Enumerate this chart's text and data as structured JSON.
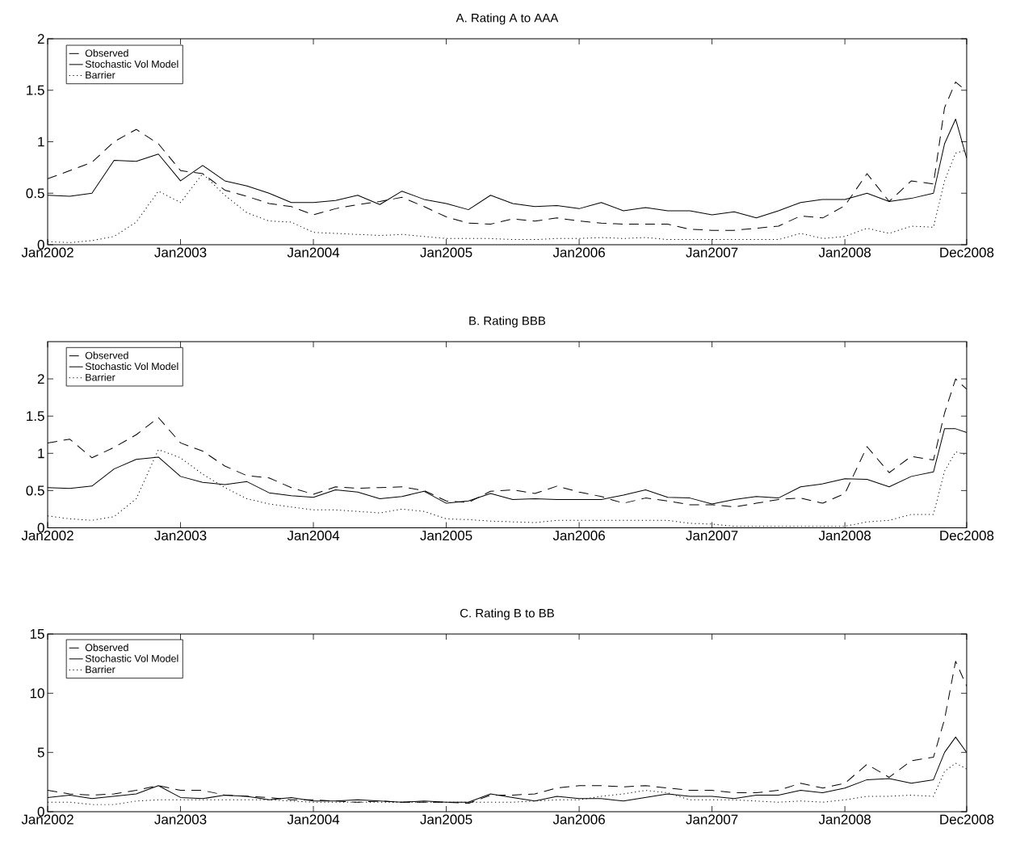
{
  "chart_data": [
    {
      "type": "line",
      "title": "A. Rating A to AAA",
      "x": [
        "2002-01",
        "2002-03",
        "2002-05",
        "2002-07",
        "2002-09",
        "2002-11",
        "2003-01",
        "2003-03",
        "2003-05",
        "2003-07",
        "2003-09",
        "2003-11",
        "2004-01",
        "2004-03",
        "2004-05",
        "2004-07",
        "2004-09",
        "2004-11",
        "2005-01",
        "2005-03",
        "2005-05",
        "2005-07",
        "2005-09",
        "2005-11",
        "2006-01",
        "2006-03",
        "2006-05",
        "2006-07",
        "2006-09",
        "2006-11",
        "2007-01",
        "2007-03",
        "2007-05",
        "2007-07",
        "2007-09",
        "2007-11",
        "2008-01",
        "2008-03",
        "2008-05",
        "2008-07",
        "2008-09",
        "2008-10",
        "2008-11",
        "2008-12"
      ],
      "series": [
        {
          "name": "Observed",
          "color": "#000000",
          "line_style": "dashed",
          "values": [
            0.64,
            0.72,
            0.8,
            1.0,
            1.12,
            0.98,
            0.72,
            0.69,
            0.53,
            0.47,
            0.4,
            0.37,
            0.29,
            0.35,
            0.39,
            0.42,
            0.46,
            0.37,
            0.27,
            0.21,
            0.2,
            0.25,
            0.23,
            0.26,
            0.23,
            0.21,
            0.2,
            0.2,
            0.2,
            0.15,
            0.14,
            0.14,
            0.16,
            0.18,
            0.28,
            0.26,
            0.38,
            0.69,
            0.42,
            0.62,
            0.59,
            1.33,
            1.58,
            1.49
          ]
        },
        {
          "name": "Stochastic Vol Model",
          "color": "#000000",
          "line_style": "solid",
          "values": [
            0.48,
            0.47,
            0.5,
            0.82,
            0.81,
            0.88,
            0.62,
            0.77,
            0.62,
            0.57,
            0.5,
            0.41,
            0.41,
            0.43,
            0.48,
            0.39,
            0.52,
            0.44,
            0.4,
            0.34,
            0.48,
            0.4,
            0.37,
            0.38,
            0.35,
            0.41,
            0.33,
            0.36,
            0.33,
            0.33,
            0.29,
            0.32,
            0.26,
            0.33,
            0.41,
            0.44,
            0.44,
            0.5,
            0.42,
            0.45,
            0.5,
            0.98,
            1.22,
            0.84
          ]
        },
        {
          "name": "Barrier",
          "color": "#000000",
          "line_style": "dotted",
          "values": [
            0.03,
            0.02,
            0.04,
            0.08,
            0.22,
            0.52,
            0.41,
            0.69,
            0.48,
            0.31,
            0.23,
            0.22,
            0.12,
            0.11,
            0.1,
            0.09,
            0.1,
            0.08,
            0.06,
            0.06,
            0.06,
            0.05,
            0.05,
            0.06,
            0.06,
            0.07,
            0.06,
            0.07,
            0.05,
            0.05,
            0.05,
            0.05,
            0.05,
            0.05,
            0.11,
            0.06,
            0.08,
            0.16,
            0.11,
            0.18,
            0.17,
            0.62,
            0.89,
            0.92
          ]
        }
      ],
      "xlim": [
        "2002-01",
        "2008-12"
      ],
      "ylim": [
        0,
        2
      ],
      "xticks": [
        {
          "value": "2002-01",
          "label": "Jan2002"
        },
        {
          "value": "2003-01",
          "label": "Jan2003"
        },
        {
          "value": "2004-01",
          "label": "Jan2004"
        },
        {
          "value": "2005-01",
          "label": "Jan2005"
        },
        {
          "value": "2006-01",
          "label": "Jan2006"
        },
        {
          "value": "2007-01",
          "label": "Jan2007"
        },
        {
          "value": "2008-01",
          "label": "Jan2008"
        },
        {
          "value": "2008-12",
          "label": "Dec2008"
        }
      ],
      "yticks": [
        0,
        0.5,
        1,
        1.5,
        2
      ],
      "legend": "top left"
    },
    {
      "type": "line",
      "title": "B. Rating BBB",
      "x": [
        "2002-01",
        "2002-03",
        "2002-05",
        "2002-07",
        "2002-09",
        "2002-11",
        "2003-01",
        "2003-03",
        "2003-05",
        "2003-07",
        "2003-09",
        "2003-11",
        "2004-01",
        "2004-03",
        "2004-05",
        "2004-07",
        "2004-09",
        "2004-11",
        "2005-01",
        "2005-03",
        "2005-05",
        "2005-07",
        "2005-09",
        "2005-11",
        "2006-01",
        "2006-03",
        "2006-05",
        "2006-07",
        "2006-09",
        "2006-11",
        "2007-01",
        "2007-03",
        "2007-05",
        "2007-07",
        "2007-09",
        "2007-11",
        "2008-01",
        "2008-03",
        "2008-05",
        "2008-07",
        "2008-09",
        "2008-10",
        "2008-11",
        "2008-12"
      ],
      "series": [
        {
          "name": "Observed",
          "color": "#000000",
          "line_style": "dashed",
          "values": [
            1.14,
            1.19,
            0.94,
            1.08,
            1.25,
            1.48,
            1.14,
            1.03,
            0.83,
            0.7,
            0.67,
            0.54,
            0.45,
            0.55,
            0.53,
            0.54,
            0.55,
            0.5,
            0.36,
            0.34,
            0.49,
            0.51,
            0.46,
            0.56,
            0.48,
            0.42,
            0.33,
            0.4,
            0.36,
            0.31,
            0.31,
            0.28,
            0.33,
            0.38,
            0.4,
            0.33,
            0.46,
            1.09,
            0.74,
            0.96,
            0.91,
            1.54,
            2.0,
            1.86
          ]
        },
        {
          "name": "Stochastic Vol Model",
          "color": "#000000",
          "line_style": "solid",
          "values": [
            0.54,
            0.53,
            0.56,
            0.79,
            0.92,
            0.95,
            0.69,
            0.61,
            0.58,
            0.62,
            0.47,
            0.43,
            0.41,
            0.51,
            0.48,
            0.39,
            0.42,
            0.49,
            0.33,
            0.36,
            0.46,
            0.38,
            0.39,
            0.38,
            0.38,
            0.38,
            0.44,
            0.51,
            0.41,
            0.4,
            0.32,
            0.38,
            0.42,
            0.4,
            0.55,
            0.59,
            0.66,
            0.65,
            0.55,
            0.69,
            0.75,
            1.33,
            1.33,
            1.28
          ]
        },
        {
          "name": "Barrier",
          "color": "#000000",
          "line_style": "dotted",
          "values": [
            0.16,
            0.12,
            0.1,
            0.15,
            0.39,
            1.05,
            0.94,
            0.72,
            0.54,
            0.39,
            0.32,
            0.28,
            0.24,
            0.24,
            0.22,
            0.2,
            0.25,
            0.22,
            0.12,
            0.11,
            0.09,
            0.08,
            0.07,
            0.1,
            0.1,
            0.1,
            0.1,
            0.1,
            0.1,
            0.06,
            0.05,
            0.02,
            0.02,
            0.02,
            0.02,
            0.02,
            0.02,
            0.08,
            0.1,
            0.18,
            0.18,
            0.76,
            1.02,
            0.98
          ]
        }
      ],
      "xlim": [
        "2002-01",
        "2008-12"
      ],
      "ylim": [
        0,
        2.5
      ],
      "xticks": [
        {
          "value": "2002-01",
          "label": "Jan2002"
        },
        {
          "value": "2003-01",
          "label": "Jan2003"
        },
        {
          "value": "2004-01",
          "label": "Jan2004"
        },
        {
          "value": "2005-01",
          "label": "Jan2005"
        },
        {
          "value": "2006-01",
          "label": "Jan2006"
        },
        {
          "value": "2007-01",
          "label": "Jan2007"
        },
        {
          "value": "2008-01",
          "label": "Jan2008"
        },
        {
          "value": "2008-12",
          "label": "Dec2008"
        }
      ],
      "yticks": [
        0,
        0.5,
        1,
        1.5,
        2
      ],
      "legend": "top left"
    },
    {
      "type": "line",
      "title": "C. Rating B to BB",
      "x": [
        "2002-01",
        "2002-03",
        "2002-05",
        "2002-07",
        "2002-09",
        "2002-11",
        "2003-01",
        "2003-03",
        "2003-05",
        "2003-07",
        "2003-09",
        "2003-11",
        "2004-01",
        "2004-03",
        "2004-05",
        "2004-07",
        "2004-09",
        "2004-11",
        "2005-01",
        "2005-03",
        "2005-05",
        "2005-07",
        "2005-09",
        "2005-11",
        "2006-01",
        "2006-03",
        "2006-05",
        "2006-07",
        "2006-09",
        "2006-11",
        "2007-01",
        "2007-03",
        "2007-05",
        "2007-07",
        "2007-09",
        "2007-11",
        "2008-01",
        "2008-03",
        "2008-05",
        "2008-07",
        "2008-09",
        "2008-10",
        "2008-11",
        "2008-12"
      ],
      "series": [
        {
          "name": "Observed",
          "color": "#000000",
          "line_style": "dashed",
          "values": [
            1.8,
            1.5,
            1.4,
            1.5,
            1.8,
            2.2,
            1.8,
            1.8,
            1.4,
            1.3,
            1.2,
            1.0,
            1.0,
            0.9,
            0.8,
            0.9,
            0.8,
            0.8,
            0.8,
            0.7,
            1.4,
            1.4,
            1.5,
            2.0,
            2.2,
            2.2,
            2.1,
            2.2,
            2.0,
            1.8,
            1.8,
            1.6,
            1.6,
            1.8,
            2.4,
            2.0,
            2.4,
            4.0,
            2.9,
            4.3,
            4.6,
            7.8,
            12.7,
            10.6
          ]
        },
        {
          "name": "Stochastic Vol Model",
          "color": "#000000",
          "line_style": "solid",
          "values": [
            1.2,
            1.4,
            1.1,
            1.3,
            1.5,
            2.2,
            1.2,
            1.1,
            1.4,
            1.3,
            1.0,
            1.2,
            0.9,
            0.9,
            1.0,
            0.9,
            0.8,
            0.9,
            0.8,
            0.8,
            1.5,
            1.2,
            0.9,
            1.3,
            1.1,
            1.1,
            0.9,
            1.2,
            1.5,
            1.3,
            1.3,
            1.1,
            1.4,
            1.4,
            1.8,
            1.6,
            2.0,
            2.7,
            2.8,
            2.4,
            2.7,
            5.0,
            6.3,
            5.0
          ]
        },
        {
          "name": "Barrier",
          "color": "#000000",
          "line_style": "dotted",
          "values": [
            0.8,
            0.8,
            0.6,
            0.6,
            0.9,
            1.0,
            1.0,
            1.0,
            1.0,
            1.0,
            1.0,
            0.9,
            0.8,
            0.8,
            0.8,
            0.8,
            0.8,
            0.8,
            0.8,
            0.8,
            0.8,
            0.8,
            0.9,
            1.0,
            1.0,
            1.3,
            1.5,
            1.8,
            1.6,
            1.0,
            1.0,
            1.0,
            0.9,
            0.8,
            0.9,
            0.8,
            1.0,
            1.3,
            1.3,
            1.4,
            1.3,
            3.4,
            4.1,
            3.6
          ]
        }
      ],
      "xlim": [
        "2002-01",
        "2008-12"
      ],
      "ylim": [
        0,
        15
      ],
      "xticks": [
        {
          "value": "2002-01",
          "label": "Jan2002"
        },
        {
          "value": "2003-01",
          "label": "Jan2003"
        },
        {
          "value": "2004-01",
          "label": "Jan2004"
        },
        {
          "value": "2005-01",
          "label": "Jan2005"
        },
        {
          "value": "2006-01",
          "label": "Jan2006"
        },
        {
          "value": "2007-01",
          "label": "Jan2007"
        },
        {
          "value": "2008-01",
          "label": "Jan2008"
        },
        {
          "value": "2008-12",
          "label": "Dec2008"
        }
      ],
      "yticks": [
        0,
        5,
        10,
        15
      ],
      "legend": "top left"
    }
  ]
}
